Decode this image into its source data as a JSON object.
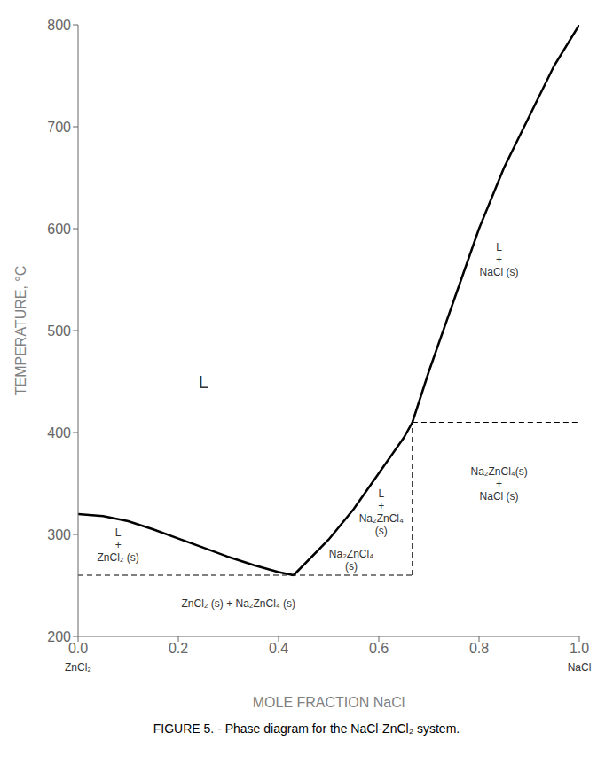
{
  "chart_data": {
    "type": "line",
    "title": "FIGURE 5. - Phase diagram for the NaCl-ZnCl₂ system.",
    "xlabel": "MOLE FRACTION  NaCl",
    "ylabel": "TEMPERATURE, °C",
    "xlim": [
      0.0,
      1.0
    ],
    "ylim": [
      200,
      800
    ],
    "xticks": [
      {
        "value": 0.0,
        "label": "0.0"
      },
      {
        "value": 0.2,
        "label": "0.2"
      },
      {
        "value": 0.4,
        "label": "0.4"
      },
      {
        "value": 0.6,
        "label": "0.6"
      },
      {
        "value": 0.8,
        "label": "0.8"
      },
      {
        "value": 1.0,
        "label": "1.0"
      }
    ],
    "yticks": [
      200,
      300,
      400,
      500,
      600,
      700,
      800
    ],
    "grid": false,
    "series": [
      {
        "x": [
          0.0,
          0.05,
          0.1,
          0.15,
          0.2,
          0.25,
          0.3,
          0.35,
          0.4,
          0.43
        ],
        "values": [
          320,
          318,
          313,
          305,
          296,
          287,
          278,
          270,
          263,
          260
        ],
        "color": "#000000",
        "line_style": "solid"
      },
      {
        "x": [
          0.43,
          0.5,
          0.55,
          0.6,
          0.65,
          0.667
        ],
        "values": [
          260,
          295,
          325,
          360,
          395,
          410
        ],
        "color": "#000000",
        "line_style": "solid"
      },
      {
        "x": [
          0.667,
          0.7,
          0.75,
          0.8,
          0.85,
          0.9,
          0.95,
          1.0
        ],
        "values": [
          410,
          460,
          530,
          600,
          660,
          710,
          760,
          800
        ],
        "color": "#000000",
        "line_style": "solid"
      },
      {
        "x": [
          0.0,
          0.667
        ],
        "values": [
          260,
          260
        ],
        "color": "#000000",
        "line_style": "dashed"
      },
      {
        "x": [
          0.667,
          1.0
        ],
        "values": [
          410,
          410
        ],
        "color": "#000000",
        "line_style": "dashed"
      },
      {
        "x": [
          0.667,
          0.667
        ],
        "values": [
          260,
          410
        ],
        "color": "#000000",
        "line_style": "dashed"
      }
    ],
    "annotations": [
      {
        "text": "L",
        "x": 0.25,
        "y": 450
      },
      {
        "text": "L\n+\nNaCl (s)",
        "x": 0.84,
        "y": 570
      },
      {
        "text": "L\n+\nZnCl₂ (s)",
        "x": 0.08,
        "y": 290
      },
      {
        "text": "L\n+\nNa₂ZnCl₄\n(s)",
        "x": 0.605,
        "y": 322
      },
      {
        "text": "Na₂ZnCl₄(s)\n+\nNaCl (s)",
        "x": 0.84,
        "y": 350
      },
      {
        "text": "ZnCl₂ (s) + Na₂ZnCl₄ (s)",
        "x": 0.32,
        "y": 232
      },
      {
        "text": "Na₂ZnCl₄\n(s)",
        "x": 0.545,
        "y": 275
      },
      {
        "text": "ZnCl₂",
        "x": 0.0,
        "y": 170
      },
      {
        "text": "NaCl",
        "x": 1.0,
        "y": 170
      }
    ]
  }
}
